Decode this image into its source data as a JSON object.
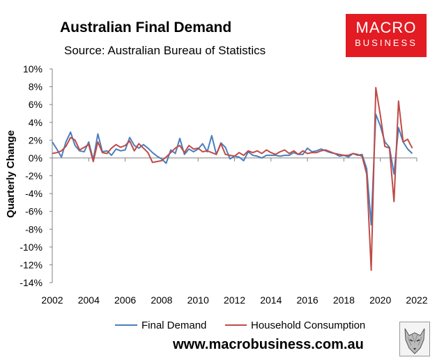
{
  "header": {
    "title": "Australian Final Demand",
    "subtitle": "Source: Australian Bureau of Statistics",
    "logo_line1": "MACRO",
    "logo_line2": "BUSINESS"
  },
  "footer": {
    "url": "www.macrobusiness.com.au"
  },
  "colors": {
    "final_demand": "#4a7ebb",
    "household": "#be4b48",
    "logo_bg": "#e31b23"
  },
  "chart_data": {
    "type": "line",
    "title": "Australian Final Demand",
    "xlabel": "",
    "ylabel": "Quarterly Change",
    "xlim": [
      2002,
      2022
    ],
    "ylim": [
      -14,
      10
    ],
    "yticks": [
      "10%",
      "8%",
      "6%",
      "4%",
      "2%",
      "0%",
      "-2%",
      "-4%",
      "-6%",
      "-8%",
      "-10%",
      "-12%",
      "-14%"
    ],
    "xticks": [
      "2002",
      "2004",
      "2006",
      "2008",
      "2010",
      "2012",
      "2014",
      "2016",
      "2018",
      "2020",
      "2022"
    ],
    "legend": "bottom",
    "series": [
      {
        "name": "Final Demand",
        "color": "#4a7ebb",
        "start": 2002.0,
        "step": 0.25,
        "values": [
          1.8,
          1.0,
          0.1,
          1.8,
          2.9,
          1.4,
          0.8,
          0.7,
          1.8,
          -0.2,
          2.7,
          0.7,
          0.8,
          0.3,
          1.0,
          0.8,
          0.9,
          2.3,
          1.4,
          1.1,
          1.5,
          1.1,
          0.6,
          0.2,
          -0.1,
          -0.6,
          0.9,
          0.5,
          2.2,
          0.4,
          1.0,
          0.7,
          1.0,
          1.6,
          0.7,
          2.5,
          0.4,
          1.7,
          1.2,
          -0.1,
          0.2,
          0.1,
          -0.3,
          0.7,
          0.3,
          0.2,
          0.0,
          0.3,
          0.3,
          0.3,
          0.2,
          0.3,
          0.3,
          0.6,
          0.4,
          0.4,
          1.1,
          0.7,
          0.8,
          1.0,
          0.8,
          0.6,
          0.5,
          0.2,
          0.3,
          0.1,
          0.5,
          0.3,
          0.4,
          -1.2,
          -7.5,
          4.9,
          3.6,
          1.8,
          1.2,
          -1.8,
          3.4,
          1.8,
          1.0,
          0.5
        ]
      },
      {
        "name": "Household Consumption",
        "color": "#be4b48",
        "start": 2002.0,
        "step": 0.25,
        "values": [
          0.5,
          0.6,
          0.8,
          1.3,
          2.3,
          2.0,
          0.9,
          1.2,
          1.5,
          -0.4,
          1.8,
          0.6,
          0.5,
          1.1,
          1.5,
          1.2,
          1.4,
          1.9,
          0.8,
          1.6,
          1.1,
          0.6,
          -0.5,
          -0.4,
          -0.3,
          0.1,
          0.6,
          1.1,
          1.4,
          0.6,
          1.4,
          1.0,
          1.1,
          0.7,
          0.8,
          0.6,
          0.4,
          1.6,
          0.4,
          0.3,
          0.2,
          0.6,
          0.3,
          0.8,
          0.6,
          0.8,
          0.5,
          0.9,
          0.6,
          0.4,
          0.7,
          0.9,
          0.5,
          0.8,
          0.4,
          0.8,
          0.5,
          0.6,
          0.6,
          0.8,
          0.9,
          0.7,
          0.5,
          0.4,
          0.3,
          0.3,
          0.5,
          0.4,
          0.2,
          -1.8,
          -12.6,
          7.9,
          4.8,
          1.3,
          1.1,
          -4.9,
          6.4,
          1.8,
          2.1,
          1.1
        ]
      }
    ]
  }
}
